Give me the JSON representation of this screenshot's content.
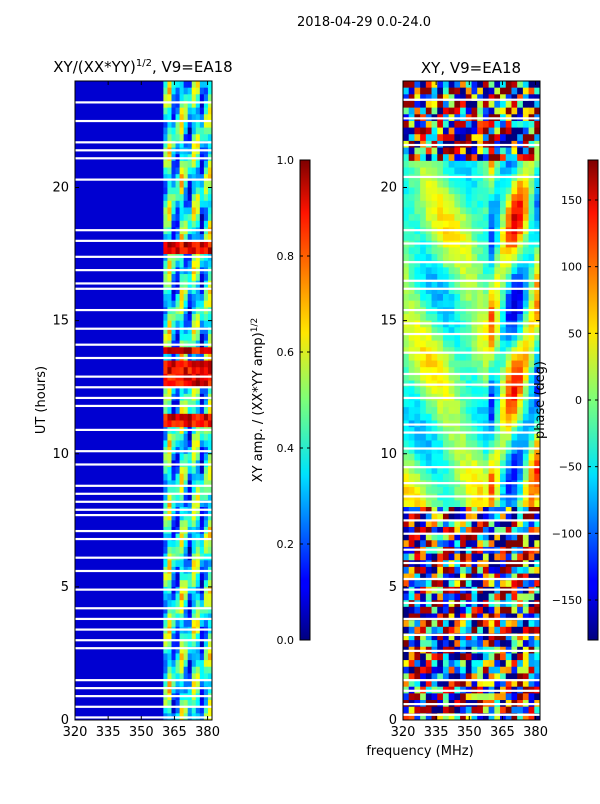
{
  "figure": {
    "suptitle": "2018-04-29 0.0-24.0",
    "shared_xlabel": "frequency (MHz)"
  },
  "chart_data": [
    {
      "type": "heatmap",
      "title": "XY/(XX*YY)^{1/2}, V9=EA18",
      "title_main": "XY/(XX*YY)",
      "title_sup": "1/2",
      "title_tail": ", V9=EA18",
      "xlabel": "",
      "ylabel": "UT (hours)",
      "xlim": [
        320,
        382
      ],
      "ylim": [
        0,
        24
      ],
      "xticks": [
        "320",
        "335",
        "350",
        "365",
        "380"
      ],
      "xtick_values": [
        320,
        335,
        350,
        365,
        380
      ],
      "yticks": [
        "0",
        "5",
        "10",
        "15",
        "20"
      ],
      "ytick_values": [
        0,
        5,
        10,
        15,
        20
      ],
      "flagged_channels_MHz": [
        320,
        360
      ],
      "active_channels_MHz": [
        360,
        382
      ],
      "colorbar": {
        "label": "XY amp. / (XX*YY amp)^{1/2}",
        "label_main": "XY amp. / (XX*YY amp)",
        "label_sup": "1/2",
        "range": [
          0.0,
          1.0
        ],
        "ticks": [
          "0.0",
          "0.2",
          "0.4",
          "0.6",
          "0.8",
          "1.0"
        ],
        "tick_values": [
          0.0,
          0.2,
          0.4,
          0.6,
          0.8,
          1.0
        ],
        "cmap": "jet"
      },
      "gap_hours": [
        23.2,
        22.5,
        21.7,
        21.4,
        21.1,
        20.3,
        18.4,
        18.0,
        17.4,
        16.9,
        16.4,
        16.2,
        15.4,
        14.7,
        14.1,
        13.6,
        12.9,
        12.5,
        12.1,
        11.8,
        10.9,
        10.1,
        9.6,
        8.8,
        8.5,
        8.2,
        7.9,
        7.7,
        7.1,
        6.8,
        6.1,
        5.6,
        4.9,
        4.2,
        3.8,
        3.4,
        3.0,
        2.7,
        1.5,
        1.2,
        0.9,
        0.5,
        0.1
      ],
      "high_amplitude_hours": [
        11.3,
        12.6,
        12.9,
        13.2,
        13.9,
        17.6,
        17.8
      ]
    },
    {
      "type": "heatmap",
      "title": "XY, V9=EA18",
      "xlabel": "frequency (MHz)",
      "ylabel": "",
      "xlim": [
        320,
        382
      ],
      "ylim": [
        0,
        24
      ],
      "xticks": [
        "320",
        "335",
        "350",
        "365",
        "380"
      ],
      "xtick_values": [
        320,
        335,
        350,
        365,
        380
      ],
      "yticks": [
        "0",
        "5",
        "10",
        "15",
        "20"
      ],
      "ytick_values": [
        0,
        5,
        10,
        15,
        20
      ],
      "colorbar": {
        "label": "phase (deg)",
        "range": [
          -180,
          180
        ],
        "ticks": [
          "150",
          "100",
          "50",
          "0",
          "−50",
          "−100",
          "−150"
        ],
        "tick_values": [
          150,
          100,
          50,
          0,
          -50,
          -100,
          -150
        ],
        "cmap": "jet"
      },
      "gap_hours": [
        23.3,
        22.6,
        21.6,
        20.4,
        18.4,
        17.9,
        17.2,
        16.5,
        16.2,
        15.4,
        14.9,
        14.5,
        13.8,
        13.0,
        12.6,
        12.1,
        11.1,
        10.8,
        10.2,
        9.5,
        8.9,
        8.4,
        7.8,
        7.5,
        7.0,
        6.4,
        5.9,
        5.3,
        4.9,
        4.4,
        3.8,
        3.2,
        2.6,
        1.5,
        1.1,
        0.6,
        0.2
      ]
    }
  ]
}
